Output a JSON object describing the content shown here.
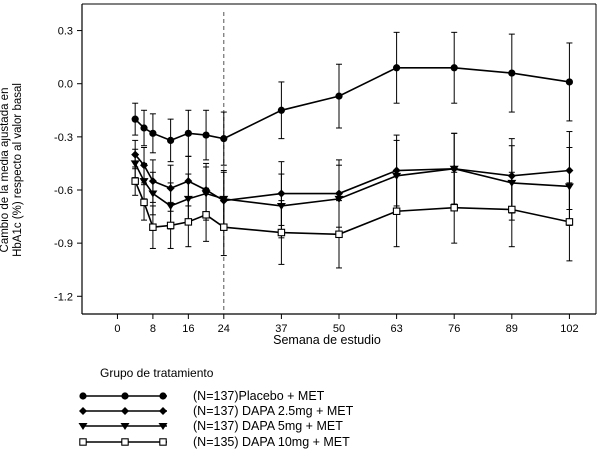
{
  "chart_data": {
    "type": "line",
    "title": "",
    "xlabel": "Semana de estudio",
    "ylabel_line1": "Cambio de la media ajustada en",
    "ylabel_line2": "HbA1c (%) respecto al valor basal",
    "xlim": [
      -8,
      108
    ],
    "ylim": [
      -1.3,
      0.45
    ],
    "xticks": [
      0,
      8,
      16,
      24,
      37,
      50,
      63,
      76,
      89,
      102
    ],
    "xtick_labels": [
      "0",
      "8",
      "16",
      "24",
      "37",
      "50",
      "63",
      "76",
      "89",
      "102"
    ],
    "yticks": [
      0.3,
      0.0,
      -0.3,
      -0.6,
      -0.9,
      -1.2
    ],
    "ytick_labels": [
      "0.3",
      "0.0",
      "-0.3",
      "-0.6",
      "-0.9",
      "-1.2"
    ],
    "reference_line_x": 24,
    "grid": false,
    "legend_title": "Grupo de tratamiento",
    "legend_position": "bottom-left",
    "series": [
      {
        "name": "(N=137)Placebo + MET",
        "marker": "filled-circle",
        "x": [
          4,
          6,
          8,
          12,
          16,
          20,
          24,
          37,
          50,
          63,
          76,
          89,
          102
        ],
        "y": [
          -0.2,
          -0.25,
          -0.28,
          -0.32,
          -0.28,
          -0.29,
          -0.31,
          -0.15,
          -0.07,
          0.09,
          0.09,
          0.06,
          0.01
        ],
        "err": [
          0.09,
          0.1,
          0.11,
          0.12,
          0.13,
          0.14,
          0.15,
          0.16,
          0.18,
          0.2,
          0.2,
          0.22,
          0.22
        ]
      },
      {
        "name": "(N=137) DAPA 2.5mg + MET",
        "marker": "filled-diamond",
        "x": [
          4,
          6,
          8,
          12,
          16,
          20,
          24,
          37,
          50,
          63,
          76,
          89,
          102
        ],
        "y": [
          -0.4,
          -0.46,
          -0.55,
          -0.59,
          -0.55,
          -0.6,
          -0.66,
          -0.62,
          -0.62,
          -0.49,
          -0.48,
          -0.52,
          -0.49
        ],
        "err": [
          0.08,
          0.1,
          0.12,
          0.13,
          0.14,
          0.15,
          0.16,
          0.18,
          0.19,
          0.2,
          0.2,
          0.21,
          0.22
        ]
      },
      {
        "name": "(N=137) DAPA 5mg + MET",
        "marker": "filled-triangle-down",
        "x": [
          4,
          6,
          8,
          12,
          16,
          20,
          24,
          37,
          50,
          63,
          76,
          89,
          102
        ],
        "y": [
          -0.45,
          -0.55,
          -0.62,
          -0.69,
          -0.65,
          -0.62,
          -0.65,
          -0.69,
          -0.65,
          -0.52,
          -0.48,
          -0.56,
          -0.58
        ],
        "err": [
          0.08,
          0.1,
          0.12,
          0.13,
          0.14,
          0.15,
          0.16,
          0.18,
          0.19,
          0.2,
          0.2,
          0.21,
          0.22
        ]
      },
      {
        "name": "(N=135) DAPA 10mg + MET",
        "marker": "open-square",
        "x": [
          4,
          6,
          8,
          12,
          16,
          20,
          24,
          37,
          50,
          63,
          76,
          89,
          102
        ],
        "y": [
          -0.55,
          -0.67,
          -0.81,
          -0.8,
          -0.78,
          -0.74,
          -0.81,
          -0.84,
          -0.85,
          -0.72,
          -0.7,
          -0.71,
          -0.78
        ],
        "err": [
          0.08,
          0.1,
          0.12,
          0.13,
          0.14,
          0.15,
          0.16,
          0.18,
          0.19,
          0.2,
          0.2,
          0.21,
          0.22
        ]
      }
    ]
  }
}
